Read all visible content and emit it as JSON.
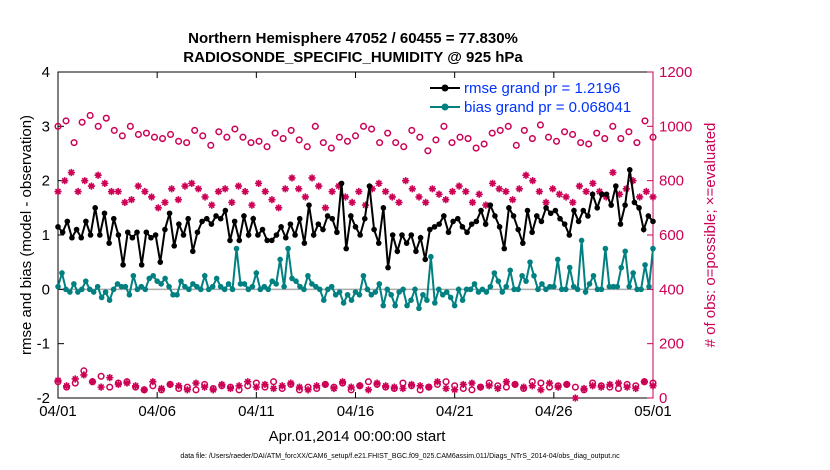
{
  "chart_data": {
    "type": "line",
    "title_line1": "Northern Hemisphere 47052 / 60455 = 77.830%",
    "title_line2": "RADIOSONDE_SPECIFIC_HUMIDITY @ 925 hPa",
    "xlabel": "Apr.01,2014 00:00:00 start",
    "ylabel_left": "rmse and bias (model - observation)",
    "ylabel_right": "# of obs: o=possible; ×=evaluated",
    "footer": "data file: /Users/raeder/DAI/ATM_forcXX/CAM6_setup/f.e21.FHIST_BGC.f09_025.CAM6assim.011/Diags_NTrS_2014-04/obs_diag_output.nc",
    "xlim": [
      0,
      30
    ],
    "ylim_left": [
      -2,
      4
    ],
    "ylim_right": [
      0,
      1200
    ],
    "x_ticks": [
      0,
      5,
      10,
      15,
      20,
      25,
      30
    ],
    "x_tick_labels": [
      "04/01",
      "04/06",
      "04/11",
      "04/16",
      "04/21",
      "04/26",
      "05/01"
    ],
    "y_left_ticks": [
      -2,
      -1,
      0,
      1,
      2,
      3,
      4
    ],
    "y_left_tick_labels": [
      "-2",
      "-1",
      "0",
      "1",
      "2",
      "3",
      "4"
    ],
    "y_right_ticks": [
      0,
      200,
      400,
      600,
      800,
      1000,
      1200
    ],
    "y_right_tick_labels": [
      "0",
      "200",
      "400",
      "600",
      "800",
      "1000",
      "1200"
    ],
    "colors": {
      "rmse": "#000000",
      "bias": "#008080",
      "obs": "#cc0055",
      "legend_text": "#0033ff",
      "zero_line": "#aaaaaa"
    },
    "legend": [
      {
        "name": "rmse grand pr = 1.2196"
      },
      {
        "name": "bias grand pr = 0.068041"
      }
    ],
    "series": [
      {
        "name": "rmse",
        "axis": "left",
        "style": "line-dot",
        "color": "#000000",
        "values": [
          1.15,
          1.05,
          1.25,
          0.95,
          1.1,
          0.95,
          1.25,
          1.0,
          1.5,
          1.0,
          1.4,
          0.85,
          1.3,
          1.0,
          0.45,
          1.05,
          0.95,
          1.05,
          0.45,
          1.05,
          0.95,
          1.0,
          0.5,
          1.1,
          1.4,
          0.8,
          1.2,
          1.0,
          1.3,
          0.7,
          1.05,
          1.25,
          1.3,
          1.2,
          1.35,
          1.3,
          1.45,
          0.9,
          1.25,
          0.9,
          1.35,
          1.0,
          1.3,
          1.0,
          1.1,
          0.9,
          0.9,
          1.0,
          1.15,
          0.95,
          1.2,
          1.0,
          1.3,
          0.85,
          1.55,
          1.0,
          1.2,
          1.1,
          1.35,
          1.3,
          1.05,
          1.95,
          0.75,
          1.35,
          1.15,
          1.0,
          1.3,
          1.9,
          1.1,
          0.85,
          1.5,
          0.4,
          1.0,
          0.7,
          1.0,
          0.85,
          1.0,
          0.7,
          0.95,
          0.55,
          1.1,
          1.15,
          1.2,
          1.35,
          1.05,
          1.25,
          1.3,
          1.15,
          1.05,
          1.2,
          1.25,
          1.45,
          1.2,
          1.55,
          1.35,
          1.15,
          0.75,
          1.5,
          1.35,
          1.1,
          0.85,
          1.45,
          1.05,
          1.35,
          1.25,
          1.5,
          1.4,
          1.45,
          1.3,
          1.2,
          1.0,
          1.45,
          1.25,
          1.45,
          1.35,
          1.75,
          1.5,
          1.75,
          1.75,
          1.55,
          1.9,
          1.2,
          1.55,
          2.2,
          1.6,
          1.5,
          1.1,
          1.35,
          1.25
        ]
      },
      {
        "name": "bias",
        "axis": "left",
        "style": "line-dot",
        "color": "#008080",
        "values": [
          0.05,
          0.3,
          0.0,
          -0.05,
          0.1,
          -0.05,
          0.0,
          0.15,
          0.0,
          -0.05,
          0.05,
          -0.15,
          -0.05,
          -0.2,
          0.0,
          0.1,
          0.05,
          0.05,
          -0.1,
          0.25,
          0.0,
          0.05,
          0.0,
          0.2,
          0.25,
          0.15,
          0.1,
          0.2,
          0.05,
          -0.1,
          -0.1,
          0.15,
          0.05,
          0.0,
          0.1,
          0.05,
          0.0,
          0.25,
          0.0,
          0.05,
          0.2,
          0.05,
          0.0,
          0.1,
          0.0,
          0.75,
          0.1,
          0.1,
          0.0,
          0.05,
          0.3,
          0.0,
          0.05,
          0.0,
          0.15,
          0.1,
          0.55,
          0.05,
          0.75,
          0.2,
          0.15,
          0.05,
          0.0,
          0.25,
          0.1,
          0.05,
          0.0,
          -0.2,
          0.0,
          0.05,
          -0.1,
          -0.05,
          -0.25,
          -0.1,
          -0.2,
          -0.05,
          -0.1,
          0.25,
          0.0,
          -0.1,
          -0.05,
          0.1,
          -0.3,
          0.0,
          -0.1,
          -0.3,
          -0.05,
          0.0,
          -0.3,
          -0.2,
          0.0,
          -0.35,
          -0.1,
          -0.2,
          0.6,
          -0.25,
          0.0,
          -0.1,
          -0.05,
          -0.15,
          -0.3,
          0.0,
          -0.2,
          0.0,
          0.0,
          0.1,
          -0.05,
          0.0,
          -0.05,
          0.05,
          0.3,
          0.15,
          -0.05,
          0.05,
          0.35,
          0.0,
          0.0,
          0.25,
          0.15,
          0.5,
          0.25,
          0.0,
          0.1,
          0.0,
          0.05,
          0.05,
          0.55,
          0.0,
          0.0,
          0.4,
          0.05,
          0.0,
          0.9,
          -0.05,
          0.1,
          0.25,
          0.0,
          0.0,
          0.75,
          0.05,
          0.05,
          0.05,
          0.4,
          0.7,
          0.05,
          0.3,
          0.0,
          0.0,
          0.45,
          0.05,
          0.75
        ]
      },
      {
        "name": "possible",
        "axis": "right",
        "style": "circle",
        "color": "#cc0055",
        "values": [
          1000,
          1020,
          940,
          1015,
          1040,
          1000,
          1030,
          985,
          965,
          1000,
          970,
          975,
          960,
          955,
          970,
          945,
          940,
          985,
          965,
          930,
          980,
          960,
          990,
          960,
          940,
          945,
          925,
          975,
          955,
          985,
          950,
          925,
          1000,
          940,
          920,
          960,
          945,
          965,
          1000,
          990,
          940,
          975,
          940,
          925,
          985,
          960,
          910,
          950,
          1000,
          940,
          960,
          955,
          920,
          935,
          975,
          985,
          1000,
          930,
          985,
          955,
          1005,
          960,
          945,
          980,
          970,
          940,
          935,
          975,
          955,
          1000,
          955,
          980,
          940,
          1020,
          960
        ]
      },
      {
        "name": "evaluated",
        "axis": "right",
        "style": "asterisk",
        "color": "#cc0055",
        "values": [
          760,
          800,
          830,
          760,
          800,
          780,
          820,
          790,
          760,
          760,
          720,
          730,
          780,
          760,
          740,
          700,
          720,
          770,
          730,
          780,
          790,
          770,
          740,
          710,
          760,
          770,
          720,
          780,
          760,
          710,
          790,
          760,
          730,
          700,
          770,
          810,
          770,
          740,
          810,
          780,
          700,
          760,
          780,
          740,
          720,
          760,
          710,
          770,
          790,
          760,
          740,
          720,
          800,
          770,
          740,
          720,
          770,
          750,
          730,
          760,
          780,
          760,
          720,
          750,
          710,
          790,
          770,
          760,
          730,
          770,
          820,
          800,
          760,
          720,
          770,
          750,
          740,
          720,
          780,
          760,
          790,
          760,
          740,
          830,
          750,
          770,
          800,
          740,
          760,
          740
        ]
      },
      {
        "name": "possible_low",
        "axis": "right",
        "style": "circle",
        "color": "#cc0055",
        "values": [
          60,
          40,
          55,
          100,
          60,
          80,
          40,
          55,
          60,
          40,
          30,
          45,
          30,
          50,
          35,
          40,
          30,
          50,
          35,
          45,
          40,
          30,
          45,
          55,
          40,
          60,
          35,
          50,
          30,
          40,
          35,
          50,
          40,
          55,
          30,
          45,
          60,
          50,
          40,
          35,
          55,
          45,
          30,
          40,
          50,
          60,
          45,
          35,
          30,
          40,
          55,
          45,
          40,
          50,
          35,
          60,
          55,
          40,
          45,
          50,
          40,
          30,
          55,
          45,
          40,
          35,
          50,
          45,
          60,
          55
        ]
      },
      {
        "name": "evaluated_low",
        "axis": "right",
        "style": "asterisk",
        "color": "#cc0055",
        "values": [
          65,
          45,
          70,
          85,
          60,
          40,
          75,
          50,
          55,
          45,
          30,
          60,
          35,
          50,
          45,
          30,
          55,
          40,
          30,
          50,
          35,
          45,
          60,
          40,
          50,
          35,
          45,
          55,
          40,
          30,
          45,
          50,
          35,
          60,
          40,
          45,
          30,
          55,
          45,
          40,
          35,
          50,
          45,
          40,
          60,
          35,
          30,
          50,
          55,
          40,
          45,
          35,
          60,
          50,
          40,
          45,
          30,
          55,
          40,
          50,
          0,
          35,
          45,
          40,
          50,
          55,
          40,
          35,
          60,
          45
        ]
      }
    ]
  }
}
